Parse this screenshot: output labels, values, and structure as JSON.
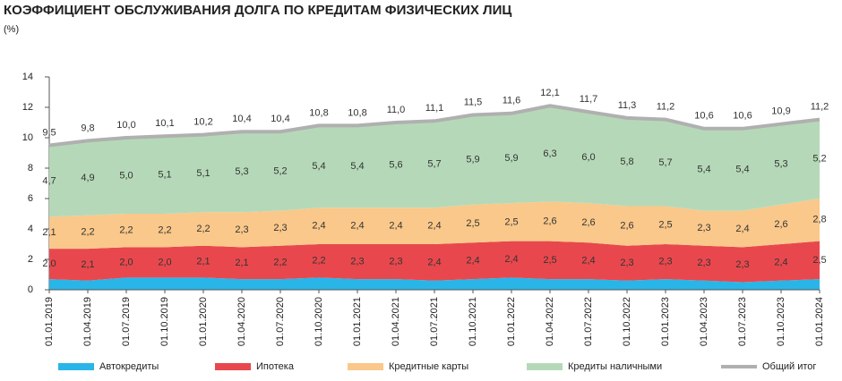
{
  "chart_data": {
    "type": "stacked-area",
    "title": "КОЭФФИЦИЕНТ ОБСЛУЖИВАНИЯ ДОЛГА ПО КРЕДИТАМ ФИЗИЧЕСКИХ ЛИЦ",
    "subtitle": "(%)",
    "categories": [
      "01.01.2019",
      "01.04.2019",
      "01.07.2019",
      "01.10.2019",
      "01.01.2020",
      "01.04.2020",
      "01.07.2020",
      "01.10.2020",
      "01.01.2021",
      "01.04.2021",
      "01.07.2021",
      "01.10.2021",
      "01.01.2022",
      "01.04.2022",
      "01.07.2022",
      "01.10.2022",
      "01.01.2023",
      "01.04.2023",
      "01.07.2023",
      "01.10.2023",
      "01.01.2024"
    ],
    "series": [
      {
        "name": "Автокредиты",
        "color": "#29b5e8",
        "values": [
          0.7,
          0.6,
          0.8,
          0.8,
          0.8,
          0.7,
          0.7,
          0.8,
          0.7,
          0.7,
          0.6,
          0.7,
          0.8,
          0.7,
          0.7,
          0.6,
          0.7,
          0.6,
          0.5,
          0.6,
          0.7
        ]
      },
      {
        "name": "Ипотека",
        "color": "#e8484d",
        "values": [
          2.0,
          2.1,
          2.0,
          2.0,
          2.1,
          2.1,
          2.2,
          2.2,
          2.3,
          2.3,
          2.4,
          2.4,
          2.4,
          2.5,
          2.4,
          2.3,
          2.3,
          2.3,
          2.3,
          2.4,
          2.5
        ],
        "value_labels": [
          "2,0",
          "2,1",
          "2,0",
          "2,0",
          "2,1",
          "2,1",
          "2,2",
          "2,2",
          "2,3",
          "2,3",
          "2,4",
          "2,4",
          "2,4",
          "2,5",
          "2,4",
          "2,3",
          "2,3",
          "2,3",
          "2,3",
          "2,4",
          "2,5"
        ]
      },
      {
        "name": "Кредитные карты",
        "color": "#fac88a",
        "values": [
          2.1,
          2.2,
          2.2,
          2.2,
          2.2,
          2.3,
          2.3,
          2.4,
          2.4,
          2.4,
          2.4,
          2.5,
          2.5,
          2.6,
          2.6,
          2.6,
          2.5,
          2.3,
          2.4,
          2.6,
          2.8
        ],
        "value_labels": [
          "2,1",
          "2,2",
          "2,2",
          "2,2",
          "2,2",
          "2,3",
          "2,3",
          "2,4",
          "2,4",
          "2,4",
          "2,4",
          "2,5",
          "2,5",
          "2,6",
          "2,6",
          "2,6",
          "2,5",
          "2,3",
          "2,4",
          "2,6",
          "2,8"
        ]
      },
      {
        "name": "Кредиты наличными",
        "color": "#b5d9b8",
        "values": [
          4.7,
          4.9,
          5.0,
          5.1,
          5.1,
          5.3,
          5.2,
          5.4,
          5.4,
          5.6,
          5.7,
          5.9,
          5.9,
          6.3,
          6.0,
          5.8,
          5.7,
          5.4,
          5.4,
          5.3,
          5.2
        ],
        "value_labels": [
          "4,7",
          "4,9",
          "5,0",
          "5,1",
          "5,1",
          "5,3",
          "5,2",
          "5,4",
          "5,4",
          "5,6",
          "5,7",
          "5,9",
          "5,9",
          "6,3",
          "6,0",
          "5,8",
          "5,7",
          "5,4",
          "5,4",
          "5,3",
          "5,2"
        ]
      }
    ],
    "total": {
      "name": "Общий итог",
      "color": "#b0b0b0",
      "values": [
        9.5,
        9.8,
        10.0,
        10.1,
        10.2,
        10.4,
        10.4,
        10.8,
        10.8,
        11.0,
        11.1,
        11.5,
        11.6,
        12.1,
        11.7,
        11.3,
        11.2,
        10.6,
        10.6,
        10.9,
        11.2
      ],
      "value_labels": [
        "9,5",
        "9,8",
        "10,0",
        "10,1",
        "10,2",
        "10,4",
        "10,4",
        "10,8",
        "10,8",
        "11,0",
        "11,1",
        "11,5",
        "11,6",
        "12,1",
        "11,7",
        "11,3",
        "11,2",
        "10,6",
        "10,6",
        "10,9",
        "11,2"
      ]
    },
    "ylim": [
      0,
      14
    ],
    "yticks": [
      0,
      2,
      4,
      6,
      8,
      10,
      12,
      14
    ]
  }
}
